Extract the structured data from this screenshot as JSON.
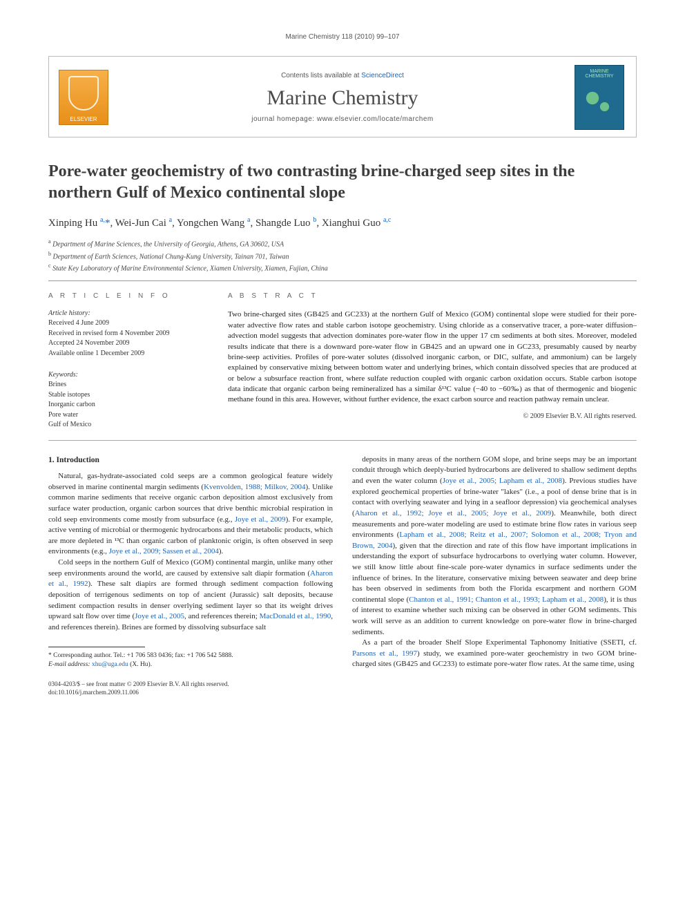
{
  "running_head": "Marine Chemistry 118 (2010) 99–107",
  "banner": {
    "contents_prefix": "Contents lists available at ",
    "contents_link": "ScienceDirect",
    "journal_title": "Marine Chemistry",
    "homepage_prefix": "journal homepage: ",
    "homepage_url": "www.elsevier.com/locate/marchem",
    "publisher_logo_label": "ELSEVIER",
    "cover_label": "MARINE CHEMISTRY"
  },
  "title": "Pore-water geochemistry of two contrasting brine-charged seep sites in the northern Gulf of Mexico continental slope",
  "authors_html": "Xinping Hu <sup>a,</sup><span class='corr'>*</span>, Wei-Jun Cai <sup>a</sup>, Yongchen Wang <sup>a</sup>, Shangde Luo <sup>b</sup>, Xianghui Guo <sup>a,c</sup>",
  "affiliations": [
    "a Department of Marine Sciences, the University of Georgia, Athens, GA 30602, USA",
    "b Department of Earth Sciences, National Chung-Kung University, Tainan 701, Taiwan",
    "c State Key Laboratory of Marine Environmental Science, Xiamen University, Xiamen, Fujian, China"
  ],
  "article_info": {
    "heading": "A R T I C L E   I N F O",
    "history_label": "Article history:",
    "history": [
      "Received 4 June 2009",
      "Received in revised form 4 November 2009",
      "Accepted 24 November 2009",
      "Available online 1 December 2009"
    ],
    "keywords_label": "Keywords:",
    "keywords": [
      "Brines",
      "Stable isotopes",
      "Inorganic carbon",
      "Pore water",
      "Gulf of Mexico"
    ]
  },
  "abstract": {
    "heading": "A B S T R A C T",
    "text": "Two brine-charged sites (GB425 and GC233) at the northern Gulf of Mexico (GOM) continental slope were studied for their pore-water advective flow rates and stable carbon isotope geochemistry. Using chloride as a conservative tracer, a pore-water diffusion–advection model suggests that advection dominates pore-water flow in the upper 17 cm sediments at both sites. Moreover, modeled results indicate that there is a downward pore-water flow in GB425 and an upward one in GC233, presumably caused by nearby brine-seep activities. Profiles of pore-water solutes (dissolved inorganic carbon, or DIC, sulfate, and ammonium) can be largely explained by conservative mixing between bottom water and underlying brines, which contain dissolved species that are produced at or below a subsurface reaction front, where sulfate reduction coupled with organic carbon oxidation occurs. Stable carbon isotope data indicate that organic carbon being remineralized has a similar δ¹³C value (−40 to −60‰) as that of thermogenic and biogenic methane found in this area. However, without further evidence, the exact carbon source and reaction pathway remain unclear.",
    "copyright": "© 2009 Elsevier B.V. All rights reserved."
  },
  "section1_head": "1. Introduction",
  "para1": "Natural, gas-hydrate-associated cold seeps are a common geological feature widely observed in marine continental margin sediments (",
  "para1_link1": "Kvenvolden, 1988; Milkov, 2004",
  "para1b": "). Unlike common marine sediments that receive organic carbon deposition almost exclusively from surface water production, organic carbon sources that drive benthic microbial respiration in cold seep environments come mostly from subsurface (e.g., ",
  "para1_link2": "Joye et al., 2009",
  "para1c": "). For example, active venting of microbial or thermogenic hydrocarbons and their metabolic products, which are more depleted in ¹³C than organic carbon of planktonic origin, is often observed in seep environments (e.g., ",
  "para1_link3": "Joye et al., 2009; Sassen et al., 2004",
  "para1d": ").",
  "para2a": "Cold seeps in the northern Gulf of Mexico (GOM) continental margin, unlike many other seep environments around the world, are caused by extensive salt diapir formation (",
  "para2_link1": "Aharon et al., 1992",
  "para2b": "). These salt diapirs are formed through sediment compaction following deposition of terrigenous sediments on top of ancient (Jurassic) salt deposits, because sediment compaction results in denser overlying sediment layer so that its weight drives upward salt flow over time (",
  "para2_link2": "Joye et al., 2005",
  "para2c": ", and references therein; ",
  "para2_link3": "MacDonald et al., 1990",
  "para2d": ", and references therein). Brines are formed by dissolving subsurface salt",
  "para3a": "deposits in many areas of the northern GOM slope, and brine seeps may be an important conduit through which deeply-buried hydrocarbons are delivered to shallow sediment depths and even the water column (",
  "para3_link1": "Joye et al., 2005; Lapham et al., 2008",
  "para3b": "). Previous studies have explored geochemical properties of brine-water \"lakes\" (i.e., a pool of dense brine that is in contact with overlying seawater and lying in a seafloor depression) via geochemical analyses (",
  "para3_link2": "Aharon et al., 1992; Joye et al., 2005; Joye et al., 2009",
  "para3c": "). Meanwhile, both direct measurements and pore-water modeling are used to estimate brine flow rates in various seep environments (",
  "para3_link3": "Lapham et al., 2008; Reitz et al., 2007; Solomon et al., 2008; Tryon and Brown, 2004",
  "para3d": "), given that the direction and rate of this flow have important implications in understanding the export of subsurface hydrocarbons to overlying water column. However, we still know little about fine-scale pore-water dynamics in surface sediments under the influence of brines. In the literature, conservative mixing between seawater and deep brine has been observed in sediments from both the Florida escarpment and northern GOM continental slope (",
  "para3_link4": "Chanton et al., 1991; Chanton et al., 1993; Lapham et al., 2008",
  "para3e": "), it is thus of interest to examine whether such mixing can be observed in other GOM sediments. This work will serve as an addition to current knowledge on pore-water flow in brine-charged sediments.",
  "para4a": "As a part of the broader Shelf Slope Experimental Taphonomy Initiative (SSETI, cf. ",
  "para4_link1": "Parsons et al., 1997",
  "para4b": ") study, we examined pore-water geochemistry in two GOM brine-charged sites (GB425 and GC233) to estimate pore-water flow rates. At the same time, using",
  "corr": {
    "line1": "* Corresponding author. Tel.: +1 706 583 0436; fax: +1 706 542 5888.",
    "line2_label": "E-mail address: ",
    "line2_email": "xhu@uga.edu",
    "line2_tail": " (X. Hu)."
  },
  "bottom": {
    "line1": "0304-4203/$ – see front matter © 2009 Elsevier B.V. All rights reserved.",
    "line2": "doi:10.1016/j.marchem.2009.11.006"
  },
  "colors": {
    "link": "#1b63b5",
    "text": "#2a2a2a",
    "rule": "#999999"
  }
}
